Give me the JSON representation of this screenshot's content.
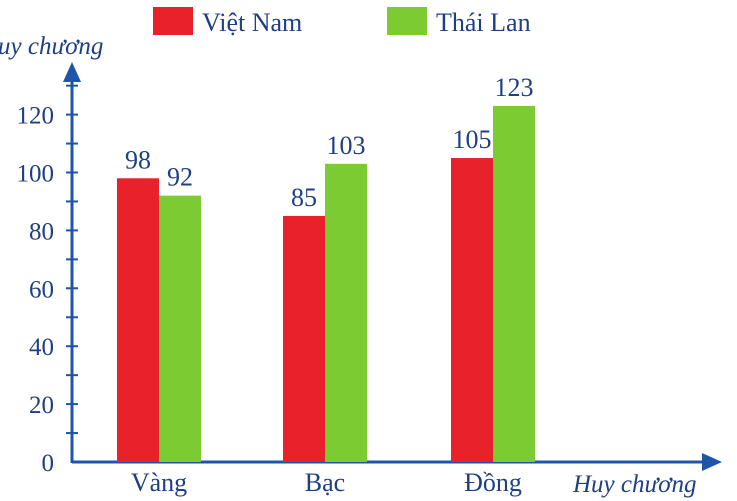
{
  "chart_data": {
    "type": "bar",
    "categories": [
      "Vàng",
      "Bạc",
      "Đồng"
    ],
    "series": [
      {
        "name": "Việt Nam",
        "values": [
          98,
          85,
          105
        ],
        "color": "#e8212b"
      },
      {
        "name": "Thái Lan",
        "values": [
          92,
          103,
          123
        ],
        "color": "#7ccb33"
      }
    ],
    "xlabel": "Huy chương",
    "ylabel": "uy chương",
    "yticks": [
      0,
      20,
      40,
      60,
      80,
      100,
      120
    ],
    "ylim": [
      0,
      130
    ],
    "grid": false,
    "legend_position": "top"
  },
  "colors": {
    "axis": "#1f55a8",
    "text": "#1f3f85"
  }
}
